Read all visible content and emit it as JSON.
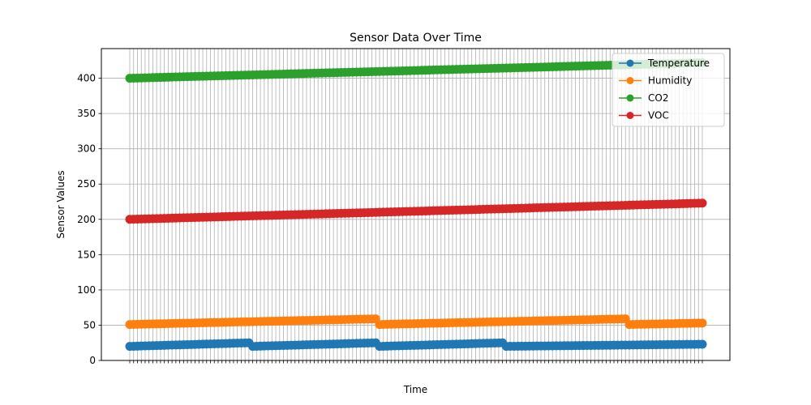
{
  "chart_data": {
    "type": "line",
    "title": "Sensor Data Over Time",
    "xlabel": "Time",
    "ylabel": "Sensor Values",
    "ylim": [
      0,
      442
    ],
    "yticks": [
      0,
      50,
      100,
      150,
      200,
      250,
      300,
      350,
      400
    ],
    "grid": true,
    "legend_position": "upper-right",
    "x_count": 150,
    "series": [
      {
        "name": "Temperature",
        "color": "#1f77b4",
        "segments": [
          {
            "count": 32,
            "start": 20.0,
            "end": 25.0
          },
          {
            "count": 33,
            "start": 20.0,
            "end": 25.0
          },
          {
            "count": 33,
            "start": 20.0,
            "end": 25.0
          },
          {
            "count": 52,
            "start": 20.0,
            "end": 23.0
          }
        ]
      },
      {
        "name": "Humidity",
        "color": "#ff7f0e",
        "segments": [
          {
            "count": 65,
            "start": 51.0,
            "end": 59.0
          },
          {
            "count": 65,
            "start": 51.0,
            "end": 59.0
          },
          {
            "count": 20,
            "start": 51.0,
            "end": 53.0
          }
        ]
      },
      {
        "name": "CO2",
        "color": "#2ca02c",
        "segments": [
          {
            "count": 150,
            "start": 400.0,
            "end": 422.0
          }
        ]
      },
      {
        "name": "VOC",
        "color": "#d62728",
        "segments": [
          {
            "count": 150,
            "start": 200.0,
            "end": 223.0
          }
        ]
      }
    ]
  }
}
